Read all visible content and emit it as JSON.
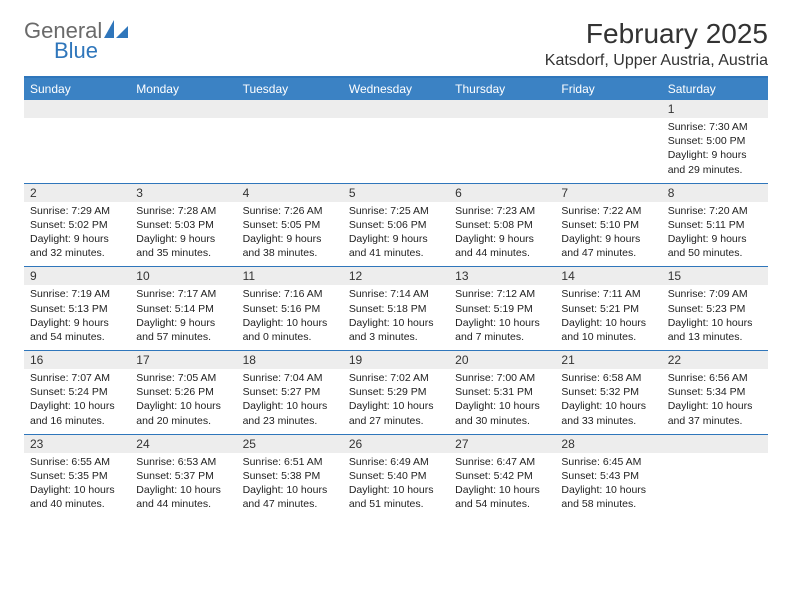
{
  "logo": {
    "part1": "General",
    "part2": "Blue"
  },
  "header": {
    "month_title": "February 2025",
    "location": "Katsdorf, Upper Austria, Austria"
  },
  "colors": {
    "accent": "#2f76bb",
    "header_bg": "#3b82c4",
    "strip_bg": "#ededed",
    "text": "#333333",
    "logo_gray": "#6a6a6a"
  },
  "day_headers": [
    "Sunday",
    "Monday",
    "Tuesday",
    "Wednesday",
    "Thursday",
    "Friday",
    "Saturday"
  ],
  "weeks": [
    {
      "nums": [
        "",
        "",
        "",
        "",
        "",
        "",
        "1"
      ],
      "infos": [
        "",
        "",
        "",
        "",
        "",
        "",
        "Sunrise: 7:30 AM\nSunset: 5:00 PM\nDaylight: 9 hours and 29 minutes."
      ]
    },
    {
      "nums": [
        "2",
        "3",
        "4",
        "5",
        "6",
        "7",
        "8"
      ],
      "infos": [
        "Sunrise: 7:29 AM\nSunset: 5:02 PM\nDaylight: 9 hours and 32 minutes.",
        "Sunrise: 7:28 AM\nSunset: 5:03 PM\nDaylight: 9 hours and 35 minutes.",
        "Sunrise: 7:26 AM\nSunset: 5:05 PM\nDaylight: 9 hours and 38 minutes.",
        "Sunrise: 7:25 AM\nSunset: 5:06 PM\nDaylight: 9 hours and 41 minutes.",
        "Sunrise: 7:23 AM\nSunset: 5:08 PM\nDaylight: 9 hours and 44 minutes.",
        "Sunrise: 7:22 AM\nSunset: 5:10 PM\nDaylight: 9 hours and 47 minutes.",
        "Sunrise: 7:20 AM\nSunset: 5:11 PM\nDaylight: 9 hours and 50 minutes."
      ]
    },
    {
      "nums": [
        "9",
        "10",
        "11",
        "12",
        "13",
        "14",
        "15"
      ],
      "infos": [
        "Sunrise: 7:19 AM\nSunset: 5:13 PM\nDaylight: 9 hours and 54 minutes.",
        "Sunrise: 7:17 AM\nSunset: 5:14 PM\nDaylight: 9 hours and 57 minutes.",
        "Sunrise: 7:16 AM\nSunset: 5:16 PM\nDaylight: 10 hours and 0 minutes.",
        "Sunrise: 7:14 AM\nSunset: 5:18 PM\nDaylight: 10 hours and 3 minutes.",
        "Sunrise: 7:12 AM\nSunset: 5:19 PM\nDaylight: 10 hours and 7 minutes.",
        "Sunrise: 7:11 AM\nSunset: 5:21 PM\nDaylight: 10 hours and 10 minutes.",
        "Sunrise: 7:09 AM\nSunset: 5:23 PM\nDaylight: 10 hours and 13 minutes."
      ]
    },
    {
      "nums": [
        "16",
        "17",
        "18",
        "19",
        "20",
        "21",
        "22"
      ],
      "infos": [
        "Sunrise: 7:07 AM\nSunset: 5:24 PM\nDaylight: 10 hours and 16 minutes.",
        "Sunrise: 7:05 AM\nSunset: 5:26 PM\nDaylight: 10 hours and 20 minutes.",
        "Sunrise: 7:04 AM\nSunset: 5:27 PM\nDaylight: 10 hours and 23 minutes.",
        "Sunrise: 7:02 AM\nSunset: 5:29 PM\nDaylight: 10 hours and 27 minutes.",
        "Sunrise: 7:00 AM\nSunset: 5:31 PM\nDaylight: 10 hours and 30 minutes.",
        "Sunrise: 6:58 AM\nSunset: 5:32 PM\nDaylight: 10 hours and 33 minutes.",
        "Sunrise: 6:56 AM\nSunset: 5:34 PM\nDaylight: 10 hours and 37 minutes."
      ]
    },
    {
      "nums": [
        "23",
        "24",
        "25",
        "26",
        "27",
        "28",
        ""
      ],
      "infos": [
        "Sunrise: 6:55 AM\nSunset: 5:35 PM\nDaylight: 10 hours and 40 minutes.",
        "Sunrise: 6:53 AM\nSunset: 5:37 PM\nDaylight: 10 hours and 44 minutes.",
        "Sunrise: 6:51 AM\nSunset: 5:38 PM\nDaylight: 10 hours and 47 minutes.",
        "Sunrise: 6:49 AM\nSunset: 5:40 PM\nDaylight: 10 hours and 51 minutes.",
        "Sunrise: 6:47 AM\nSunset: 5:42 PM\nDaylight: 10 hours and 54 minutes.",
        "Sunrise: 6:45 AM\nSunset: 5:43 PM\nDaylight: 10 hours and 58 minutes.",
        ""
      ]
    }
  ]
}
